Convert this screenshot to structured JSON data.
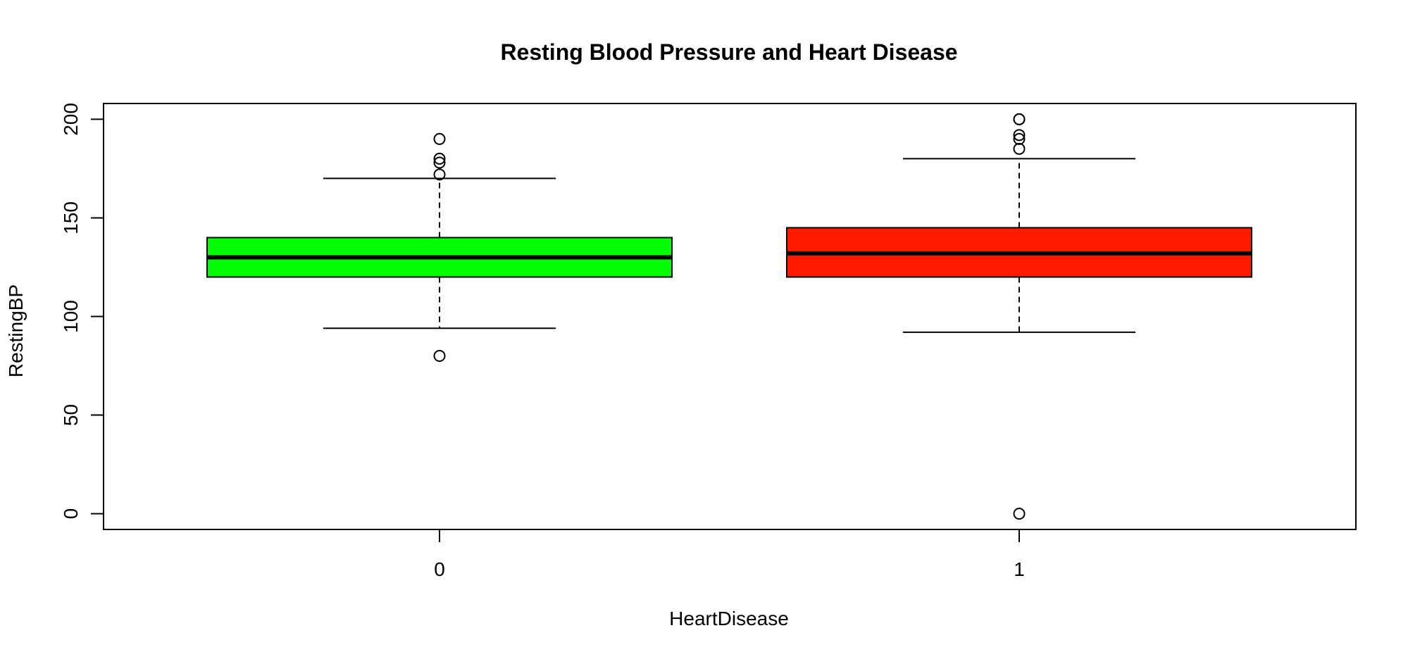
{
  "chart_data": {
    "type": "boxplot",
    "title": "Resting Blood Pressure and Heart Disease",
    "xlabel": "HeartDisease",
    "ylabel": "RestingBP",
    "ylim": [
      -8,
      208
    ],
    "y_ticks": [
      0,
      50,
      100,
      150,
      200
    ],
    "grid": false,
    "legend": "none",
    "categories": [
      "0",
      "1"
    ],
    "boxes": [
      {
        "category": "0",
        "color": "#00ff00",
        "whisker_low": 94,
        "q1": 120,
        "median": 130,
        "q3": 140,
        "whisker_high": 170,
        "outliers": [
          80,
          172,
          178,
          180,
          190
        ]
      },
      {
        "category": "1",
        "color": "#ff1a00",
        "whisker_low": 92,
        "q1": 120,
        "median": 132,
        "q3": 145,
        "whisker_high": 180,
        "outliers": [
          0,
          185,
          190,
          192,
          200,
          200
        ]
      }
    ]
  }
}
